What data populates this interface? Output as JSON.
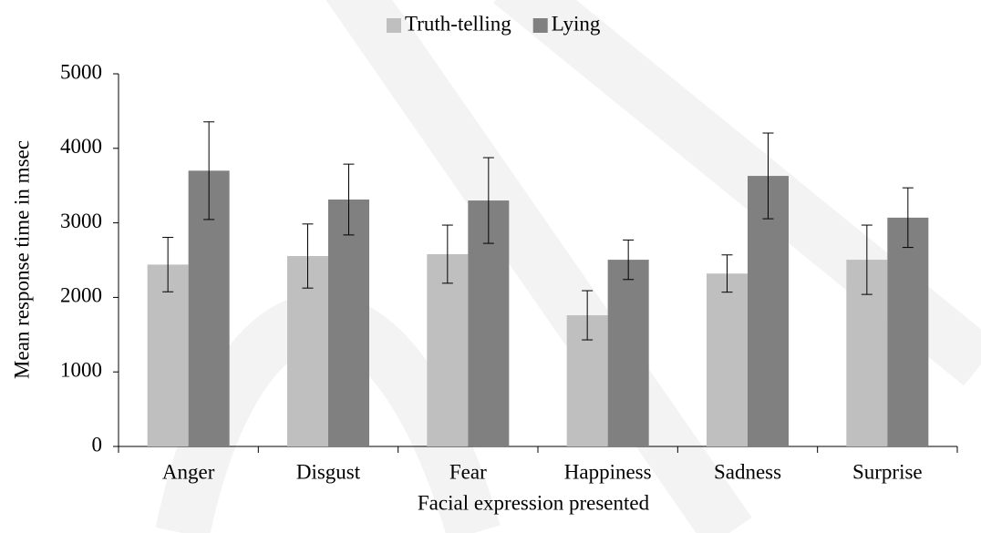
{
  "chart_data": {
    "type": "bar",
    "x_label": "Facial expression presented",
    "y_label": "Mean response time in msec",
    "categories": [
      "Anger",
      "Disgust",
      "Fear",
      "Happiness",
      "Sadness",
      "Surprise"
    ],
    "series": [
      {
        "name": "Truth-telling",
        "color": "#bfbfbf",
        "values": [
          2440,
          2555,
          2580,
          1760,
          2320,
          2505
        ],
        "errors": [
          365,
          430,
          390,
          330,
          250,
          465
        ]
      },
      {
        "name": "Lying",
        "color": "#808080",
        "values": [
          3700,
          3313,
          3300,
          2505,
          3630,
          3070
        ],
        "errors": [
          655,
          475,
          575,
          265,
          575,
          400
        ]
      }
    ],
    "ylim": [
      0,
      5000
    ],
    "yticks": [
      0,
      1000,
      2000,
      3000,
      4000,
      5000
    ],
    "grid": false,
    "legend": "top"
  }
}
